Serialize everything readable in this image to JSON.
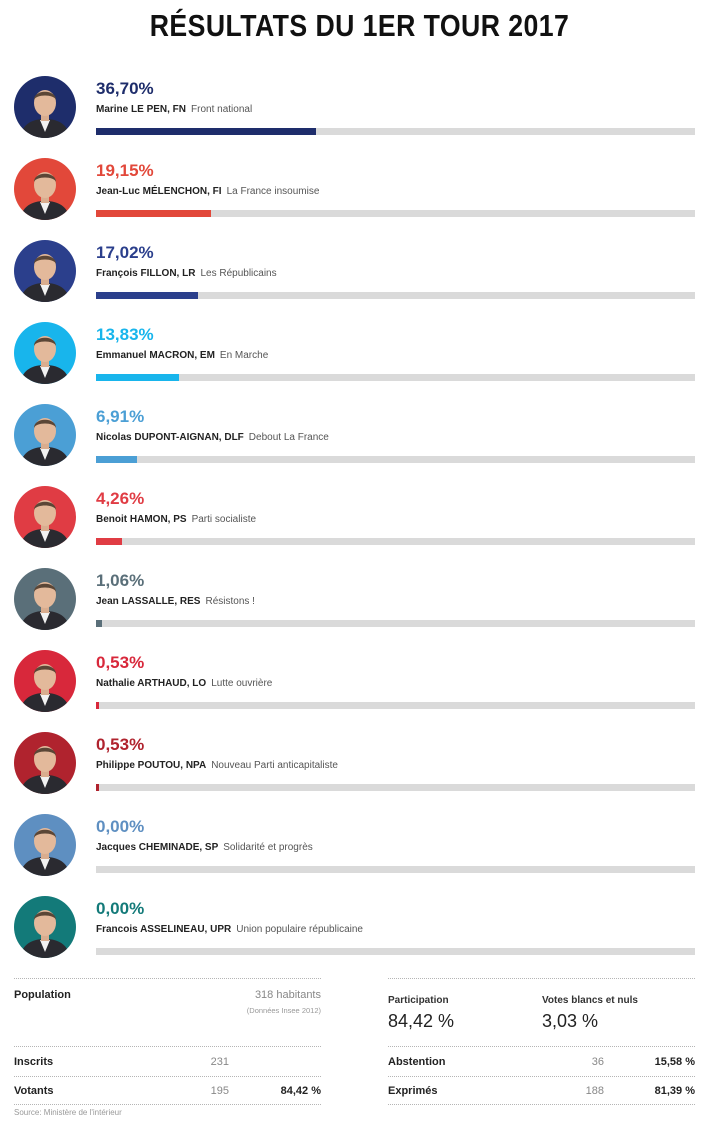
{
  "title": "RÉSULTATS DU 1ER TOUR 2017",
  "chart_data": {
    "type": "bar",
    "categories": [
      "Marine LE PEN, FN",
      "Jean-Luc MÉLENCHON, FI",
      "François FILLON, LR",
      "Emmanuel MACRON, EM",
      "Nicolas DUPONT-AIGNAN, DLF",
      "Benoit HAMON, PS",
      "Jean LASSALLE, RES",
      "Nathalie ARTHAUD, LO",
      "Philippe POUTOU, NPA",
      "Jacques CHEMINADE, SP",
      "Francois ASSELINEAU, UPR"
    ],
    "values": [
      36.7,
      19.15,
      17.02,
      13.83,
      6.91,
      4.26,
      1.06,
      0.53,
      0.53,
      0.0,
      0.0
    ],
    "ylim": [
      0,
      100
    ],
    "orientation": "horizontal",
    "grid": false,
    "legend": "none"
  },
  "candidates": [
    {
      "pct": "36,70%",
      "name": "Marine LE PEN, FN",
      "party": "Front national",
      "value": 36.7,
      "color": "#1e2d6b",
      "icon": "portrait-le-pen-icon"
    },
    {
      "pct": "19,15%",
      "name": "Jean-Luc MÉLENCHON, FI",
      "party": "La France insoumise",
      "value": 19.15,
      "color": "#e2483a",
      "icon": "portrait-melenchon-icon"
    },
    {
      "pct": "17,02%",
      "name": "François FILLON, LR",
      "party": "Les Républicains",
      "value": 17.02,
      "color": "#2b3f8c",
      "icon": "portrait-fillon-icon"
    },
    {
      "pct": "13,83%",
      "name": "Emmanuel MACRON, EM",
      "party": "En Marche",
      "value": 13.83,
      "color": "#18b5ec",
      "icon": "portrait-macron-icon"
    },
    {
      "pct": "6,91%",
      "name": "Nicolas DUPONT-AIGNAN, DLF",
      "party": "Debout La France",
      "value": 6.91,
      "color": "#4b9fd5",
      "icon": "portrait-dupont-aignan-icon"
    },
    {
      "pct": "4,26%",
      "name": "Benoit HAMON, PS",
      "party": "Parti socialiste",
      "value": 4.26,
      "color": "#e03c44",
      "icon": "portrait-hamon-icon"
    },
    {
      "pct": "1,06%",
      "name": "Jean LASSALLE, RES",
      "party": "Résistons !",
      "value": 1.06,
      "color": "#5a6f79",
      "icon": "portrait-lassalle-icon"
    },
    {
      "pct": "0,53%",
      "name": "Nathalie ARTHAUD, LO",
      "party": "Lutte ouvrière",
      "value": 0.53,
      "color": "#d8283b",
      "icon": "portrait-arthaud-icon"
    },
    {
      "pct": "0,53%",
      "name": "Philippe POUTOU, NPA",
      "party": "Nouveau Parti anticapitaliste",
      "value": 0.53,
      "color": "#b0232e",
      "icon": "portrait-poutou-icon"
    },
    {
      "pct": "0,00%",
      "name": "Jacques CHEMINADE, SP",
      "party": "Solidarité et progrès",
      "value": 0.0,
      "color": "#5e8fc1",
      "icon": "portrait-cheminade-icon"
    },
    {
      "pct": "0,00%",
      "name": "Francois ASSELINEAU, UPR",
      "party": "Union populaire républicaine",
      "value": 0.0,
      "color": "#137a79",
      "icon": "portrait-asselineau-icon"
    }
  ],
  "stats": {
    "population_label": "Population",
    "population_value": "318 habitants",
    "population_note": "(Données Insee 2012)",
    "inscrits_label": "Inscrits",
    "inscrits_value": "231",
    "votants_label": "Votants",
    "votants_value": "195",
    "votants_pct": "84,42 %",
    "participation_label": "Participation",
    "participation_value": "84,42 %",
    "blancs_label": "Votes blancs et nuls",
    "blancs_value": "3,03 %",
    "abstention_label": "Abstention",
    "abstention_value": "36",
    "abstention_pct": "15,58 %",
    "exprimes_label": "Exprimés",
    "exprimes_value": "188",
    "exprimes_pct": "81,39 %"
  },
  "source": "Source: Ministère de l'intérieur"
}
